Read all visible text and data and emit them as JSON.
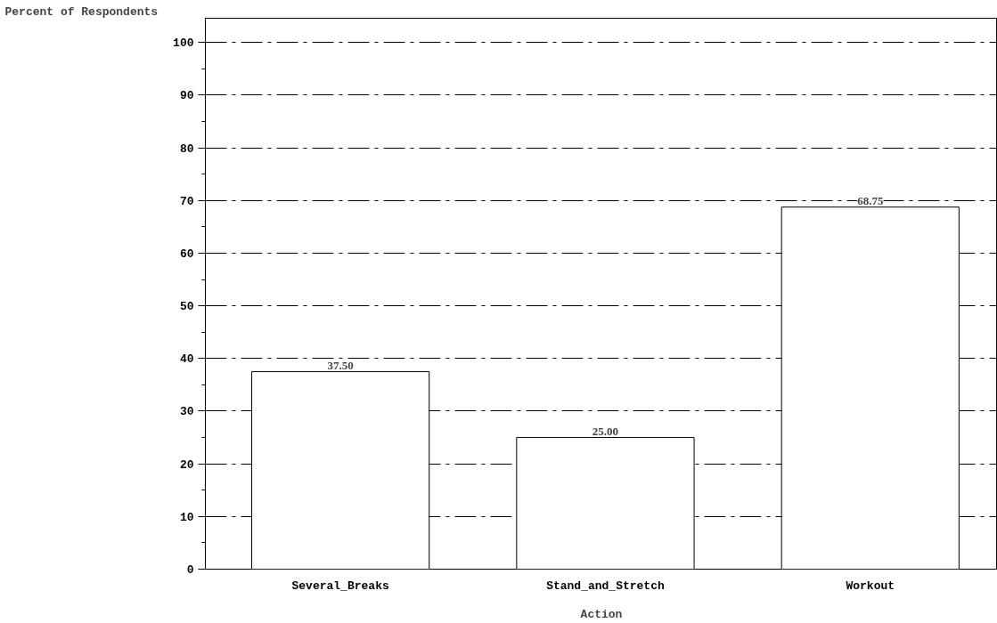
{
  "chart_data": {
    "type": "bar",
    "xlabel": "Action",
    "ylabel": "Percent of Respondents",
    "categories": [
      "Several_Breaks",
      "Stand_and_Stretch",
      "Workout"
    ],
    "values": [
      37.5,
      25.0,
      68.75
    ],
    "value_labels": [
      "37.50",
      "25.00",
      "68.75"
    ],
    "color": "#ffffff",
    "ylim": [
      0,
      104.6
    ],
    "yticks": [
      0,
      10,
      20,
      30,
      40,
      50,
      60,
      70,
      80,
      90,
      100
    ],
    "grid": "y"
  }
}
